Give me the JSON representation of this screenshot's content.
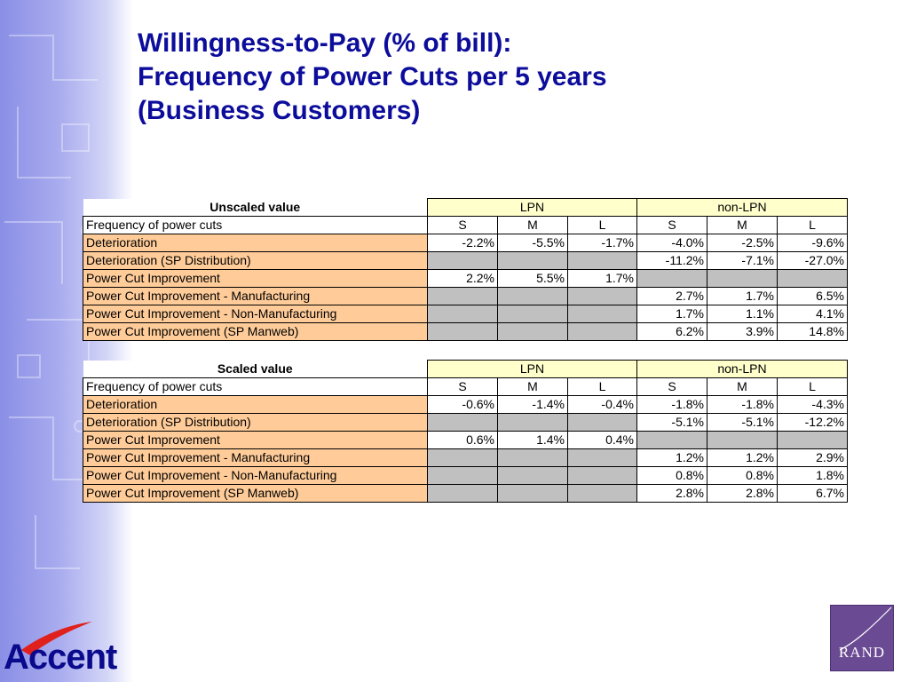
{
  "title": {
    "line1": "Willingness-to-Pay (% of bill):",
    "line2": "Frequency of Power Cuts per 5 years",
    "line3": "(Business Customers)"
  },
  "tables": [
    {
      "label": "Unscaled value",
      "groups": [
        "LPN",
        "non-LPN"
      ],
      "freq_label": "Frequency of power cuts",
      "sub_headers": [
        "S",
        "M",
        "L",
        "S",
        "M",
        "L"
      ],
      "rows": [
        {
          "label": "Deterioration",
          "cells": [
            "-2.2%",
            "-5.5%",
            "-1.7%",
            "-4.0%",
            "-2.5%",
            "-9.6%"
          ]
        },
        {
          "label": "Deterioration (SP Distribution)",
          "cells": [
            "",
            "",
            "",
            "-11.2%",
            "-7.1%",
            "-27.0%"
          ]
        },
        {
          "label": "Power Cut Improvement",
          "cells": [
            "2.2%",
            "5.5%",
            "1.7%",
            "",
            "",
            ""
          ]
        },
        {
          "label": "Power Cut Improvement  - Manufacturing",
          "cells": [
            "",
            "",
            "",
            "2.7%",
            "1.7%",
            "6.5%"
          ]
        },
        {
          "label": "Power Cut Improvement  - Non-Manufacturing",
          "cells": [
            "",
            "",
            "",
            "1.7%",
            "1.1%",
            "4.1%"
          ]
        },
        {
          "label": "Power Cut Improvement (SP Manweb)",
          "cells": [
            "",
            "",
            "",
            "6.2%",
            "3.9%",
            "14.8%"
          ]
        }
      ]
    },
    {
      "label": "Scaled value",
      "groups": [
        "LPN",
        "non-LPN"
      ],
      "freq_label": "Frequency of power cuts",
      "sub_headers": [
        "S",
        "M",
        "L",
        "S",
        "M",
        "L"
      ],
      "rows": [
        {
          "label": "Deterioration",
          "cells": [
            "-0.6%",
            "-1.4%",
            "-0.4%",
            "-1.8%",
            "-1.8%",
            "-4.3%"
          ]
        },
        {
          "label": "Deterioration (SP Distribution)",
          "cells": [
            "",
            "",
            "",
            "-5.1%",
            "-5.1%",
            "-12.2%"
          ]
        },
        {
          "label": "Power Cut Improvement",
          "cells": [
            "0.6%",
            "1.4%",
            "0.4%",
            "",
            "",
            ""
          ]
        },
        {
          "label": "Power Cut Improvement  - Manufacturing",
          "cells": [
            "",
            "",
            "",
            "1.2%",
            "1.2%",
            "2.9%"
          ]
        },
        {
          "label": "Power Cut Improvement  - Non-Manufacturing",
          "cells": [
            "",
            "",
            "",
            "0.8%",
            "0.8%",
            "1.8%"
          ]
        },
        {
          "label": "Power Cut Improvement (SP Manweb)",
          "cells": [
            "",
            "",
            "",
            "2.8%",
            "2.8%",
            "6.7%"
          ]
        }
      ]
    }
  ],
  "logos": {
    "left": "Accent",
    "right": "RAND"
  },
  "colors": {
    "title": "#0d0d9c",
    "row_label_bg": "#ffcc99",
    "group_header_bg": "#ffffcc",
    "empty_cell_bg": "#c0c0c0",
    "rand_bg": "#6a4a93"
  }
}
